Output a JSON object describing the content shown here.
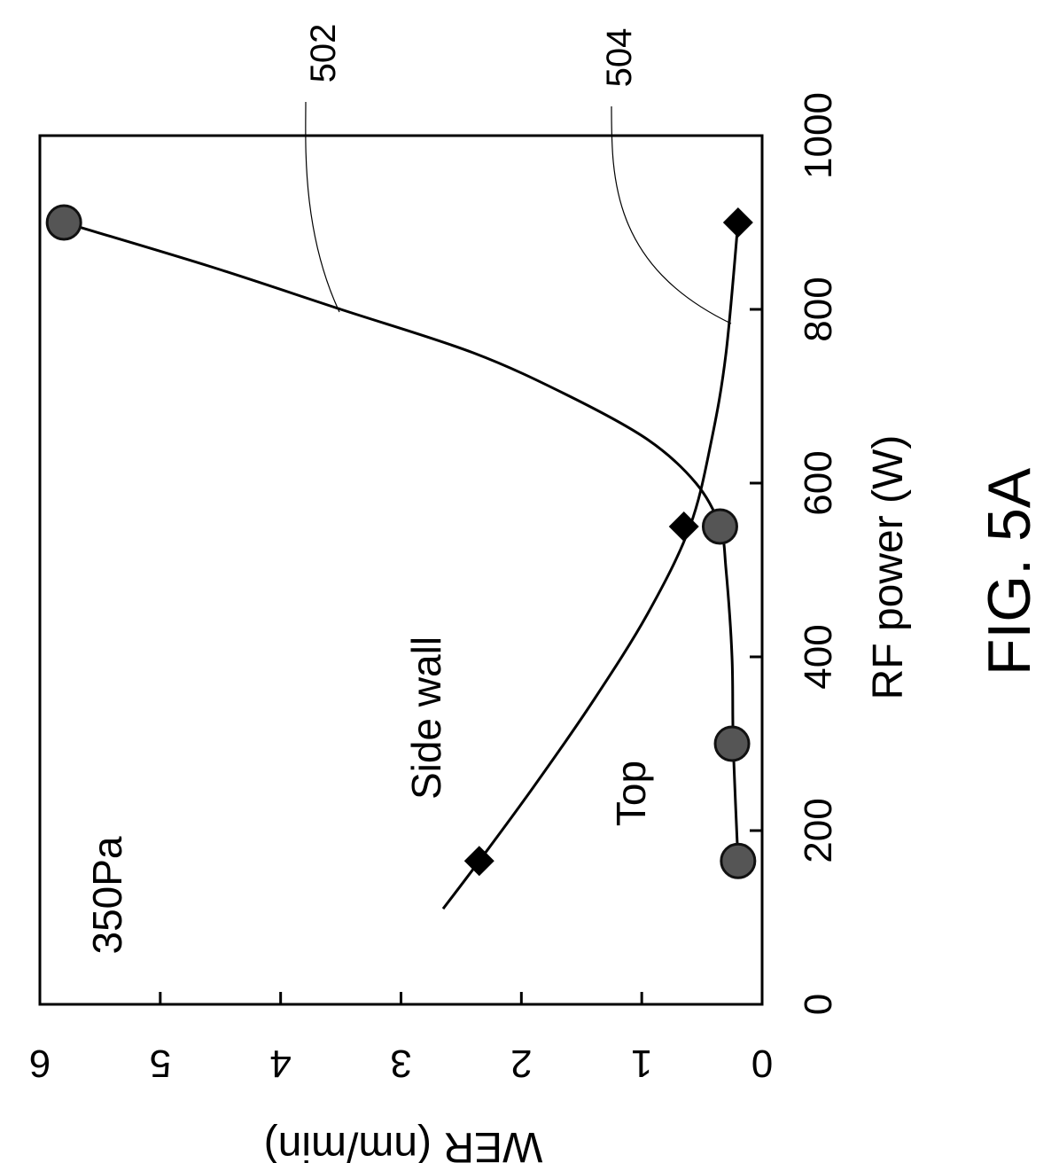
{
  "chart_data": {
    "type": "scatter",
    "title": "",
    "xlabel": "RF power (W)",
    "ylabel": "WER (nm/min)",
    "xlim": [
      0,
      1000
    ],
    "ylim": [
      0,
      6
    ],
    "xticks": [
      0,
      200,
      400,
      600,
      800,
      1000
    ],
    "yticks": [
      0,
      1,
      2,
      3,
      4,
      5,
      6
    ],
    "xtick_labels": [
      "0",
      "200",
      "400",
      "600",
      "800",
      "1000"
    ],
    "ytick_labels": [
      "0",
      "1",
      "2",
      "3",
      "4",
      "5",
      "6"
    ],
    "grid": false,
    "series": [
      {
        "name": "Side wall",
        "marker": "circle",
        "ref": "502",
        "points": [
          [
            165,
            0.2
          ],
          [
            300,
            0.25
          ],
          [
            550,
            0.35
          ],
          [
            900,
            5.8
          ]
        ],
        "fit": [
          [
            165,
            0.2
          ],
          [
            300,
            0.24
          ],
          [
            400,
            0.25
          ],
          [
            500,
            0.3
          ],
          [
            550,
            0.35
          ],
          [
            600,
            0.55
          ],
          [
            650,
            0.95
          ],
          [
            700,
            1.6
          ],
          [
            750,
            2.4
          ],
          [
            800,
            3.5
          ],
          [
            850,
            4.6
          ],
          [
            900,
            5.8
          ]
        ]
      },
      {
        "name": "Top",
        "marker": "diamond",
        "ref": "504",
        "points": [
          [
            165,
            2.35
          ],
          [
            550,
            0.65
          ],
          [
            900,
            0.2
          ]
        ],
        "fit": [
          [
            110,
            2.65
          ],
          [
            165,
            2.35
          ],
          [
            250,
            1.9
          ],
          [
            350,
            1.4
          ],
          [
            450,
            0.95
          ],
          [
            550,
            0.6
          ],
          [
            650,
            0.42
          ],
          [
            750,
            0.3
          ],
          [
            900,
            0.2
          ]
        ]
      }
    ],
    "annotations": [
      "350Pa",
      "Side wall",
      "Top"
    ],
    "reference_labels": [
      "502",
      "504"
    ],
    "figure_label": "FIG. 5A"
  }
}
